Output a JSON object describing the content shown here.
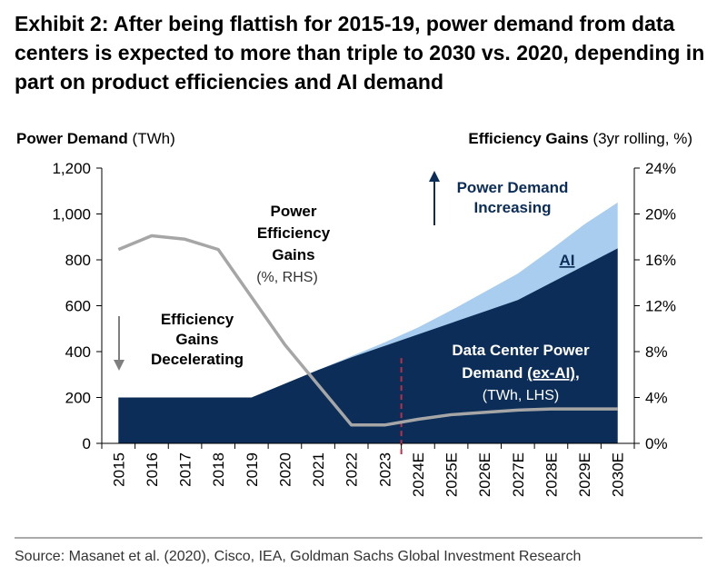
{
  "title": "Exhibit 2: After being flattish for 2015-19, power demand from data centers is expected to more than triple to 2030 vs. 2020, depending in part on product efficiencies and AI demand",
  "source": "Source: Masanet et al. (2020), Cisco, IEA, Goldman Sachs Global Investment Research",
  "colors": {
    "data_center": "#0b2d57",
    "ai": "#a9cdee",
    "efficiency_line": "#a6a6a6",
    "forecast_divider": "#b8314a",
    "arrow_down": "#7f7f7f",
    "arrow_up": "#0b2d57"
  },
  "chart_data": {
    "type": "area",
    "title": "",
    "y_left": {
      "label_bold": "Power Demand",
      "label_unit": "(TWh)",
      "lim": [
        0,
        1200
      ],
      "ticks": [
        "0",
        "200",
        "400",
        "600",
        "800",
        "1,000",
        "1,200"
      ]
    },
    "y_right": {
      "label_bold": "Efficiency Gains",
      "label_unit": "(3yr rolling, %)",
      "lim": [
        0,
        24
      ],
      "ticks": [
        "0%",
        "4%",
        "8%",
        "12%",
        "16%",
        "20%",
        "24%"
      ]
    },
    "categories": [
      "2015",
      "2016",
      "2017",
      "2018",
      "2019",
      "2020",
      "2021",
      "2022",
      "2023",
      "2024E",
      "2025E",
      "2026E",
      "2027E",
      "2028E",
      "2029E",
      "2030E"
    ],
    "forecast_divider_after": "2023",
    "series": [
      {
        "name": "Data Center Power Demand (ex-AI)",
        "type": "area",
        "axis": "left",
        "stacked": true,
        "values": [
          200,
          200,
          200,
          200,
          200,
          260,
          320,
          375,
          425,
          475,
          525,
          575,
          625,
          700,
          775,
          850
        ]
      },
      {
        "name": "AI",
        "type": "area",
        "axis": "left",
        "stacked": true,
        "values": [
          0,
          0,
          0,
          0,
          0,
          0,
          0,
          5,
          15,
          30,
          55,
          85,
          115,
          145,
          180,
          200
        ]
      },
      {
        "name": "Power Efficiency Gains",
        "type": "line",
        "axis": "right",
        "values": [
          16.9,
          18.1,
          17.8,
          16.9,
          null,
          8.6,
          null,
          1.6,
          1.6,
          2.1,
          2.5,
          2.7,
          2.9,
          3.0,
          3.0,
          3.0
        ]
      }
    ],
    "annotations": {
      "efficiency_line_label": {
        "bold_lines": [
          "Power",
          "Efficiency",
          "Gains"
        ],
        "sub": "(%, RHS)"
      },
      "decelerating": {
        "lines": [
          "Efficiency",
          "Gains",
          "Decelerating"
        ]
      },
      "increasing": {
        "lines": [
          "Power Demand",
          "Increasing"
        ]
      },
      "ai_label": "AI",
      "dc_label": {
        "line1": "Data Center Power",
        "line2_prefix": "Demand ",
        "line2_underlined": "(ex-AI)",
        "line2_suffix": ",",
        "line3": "(TWh, LHS)"
      }
    }
  }
}
